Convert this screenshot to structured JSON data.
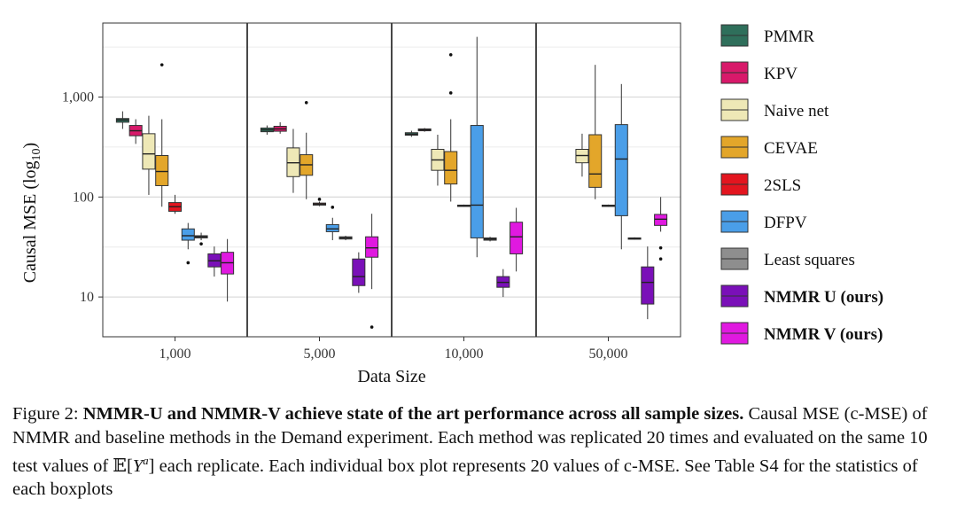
{
  "chart_data": {
    "type": "boxplot",
    "scale": "log10",
    "ylabel": "Causal MSE (log",
    "ylabel_sub": "10",
    "ylabel_close": ")",
    "xlabel": "Data Size",
    "ylim": [
      4,
      5500
    ],
    "yticks": [
      {
        "value": 10,
        "label": "10"
      },
      {
        "value": 100,
        "label": "100"
      },
      {
        "value": 1000,
        "label": "1,000"
      }
    ],
    "categories": [
      "1,000",
      "5,000",
      "10,000",
      "50,000"
    ],
    "methods": [
      {
        "name": "PMMR",
        "color": "#2f6f5b",
        "bold": false
      },
      {
        "name": "KPV",
        "color": "#d8196a",
        "bold": false
      },
      {
        "name": "Naive net",
        "color": "#eee8b6",
        "bold": false
      },
      {
        "name": "CEVAE",
        "color": "#e3a62a",
        "bold": false
      },
      {
        "name": "2SLS",
        "color": "#e3151f",
        "bold": false
      },
      {
        "name": "DFPV",
        "color": "#4a9ee8",
        "bold": false
      },
      {
        "name": "Least squares",
        "color": "#8e8e8e",
        "bold": false
      },
      {
        "name": "NMMR U (ours)",
        "color": "#7a10b8",
        "bold": true
      },
      {
        "name": "NMMR V (ours)",
        "color": "#e019e0",
        "bold": true
      }
    ],
    "boxes": [
      {
        "group": 0,
        "method": 0,
        "q1": 560,
        "median": 590,
        "q3": 610,
        "lo": 480,
        "hi": 720,
        "outliers": []
      },
      {
        "group": 0,
        "method": 1,
        "q1": 410,
        "median": 460,
        "q3": 520,
        "lo": 340,
        "hi": 600,
        "outliers": []
      },
      {
        "group": 0,
        "method": 2,
        "q1": 190,
        "median": 270,
        "q3": 430,
        "lo": 105,
        "hi": 650,
        "outliers": []
      },
      {
        "group": 0,
        "method": 3,
        "q1": 130,
        "median": 180,
        "q3": 260,
        "lo": 80,
        "hi": 600,
        "outliers": [
          2100
        ]
      },
      {
        "group": 0,
        "method": 4,
        "q1": 72,
        "median": 80,
        "q3": 88,
        "lo": 68,
        "hi": 105,
        "outliers": []
      },
      {
        "group": 0,
        "method": 5,
        "q1": 37,
        "median": 41,
        "q3": 48,
        "lo": 30,
        "hi": 55,
        "outliers": [
          22
        ]
      },
      {
        "group": 0,
        "method": 6,
        "q1": 39,
        "median": 40,
        "q3": 41,
        "lo": 37,
        "hi": 44,
        "outliers": [
          34
        ]
      },
      {
        "group": 0,
        "method": 7,
        "q1": 20,
        "median": 23,
        "q3": 27,
        "lo": 16,
        "hi": 32,
        "outliers": []
      },
      {
        "group": 0,
        "method": 8,
        "q1": 17,
        "median": 22,
        "q3": 28,
        "lo": 9,
        "hi": 38,
        "outliers": []
      },
      {
        "group": 1,
        "method": 0,
        "q1": 450,
        "median": 470,
        "q3": 490,
        "lo": 420,
        "hi": 520,
        "outliers": []
      },
      {
        "group": 1,
        "method": 1,
        "q1": 455,
        "median": 480,
        "q3": 510,
        "lo": 430,
        "hi": 560,
        "outliers": []
      },
      {
        "group": 1,
        "method": 2,
        "q1": 160,
        "median": 220,
        "q3": 310,
        "lo": 110,
        "hi": 480,
        "outliers": []
      },
      {
        "group": 1,
        "method": 3,
        "q1": 165,
        "median": 210,
        "q3": 265,
        "lo": 95,
        "hi": 440,
        "outliers": [
          880
        ]
      },
      {
        "group": 1,
        "method": 4,
        "q1": 83,
        "median": 85,
        "q3": 87,
        "lo": 81,
        "hi": 90,
        "outliers": [
          95
        ]
      },
      {
        "group": 1,
        "method": 5,
        "q1": 45,
        "median": 48,
        "q3": 53,
        "lo": 37,
        "hi": 62,
        "outliers": [
          79
        ]
      },
      {
        "group": 1,
        "method": 6,
        "q1": 38,
        "median": 39,
        "q3": 40,
        "lo": 37,
        "hi": 41,
        "outliers": []
      },
      {
        "group": 1,
        "method": 7,
        "q1": 13,
        "median": 16,
        "q3": 24,
        "lo": 11,
        "hi": 28,
        "outliers": []
      },
      {
        "group": 1,
        "method": 8,
        "q1": 25,
        "median": 31,
        "q3": 40,
        "lo": 12,
        "hi": 68,
        "outliers": [
          5
        ]
      },
      {
        "group": 2,
        "method": 0,
        "q1": 415,
        "median": 425,
        "q3": 440,
        "lo": 400,
        "hi": 460,
        "outliers": []
      },
      {
        "group": 2,
        "method": 1,
        "q1": 460,
        "median": 470,
        "q3": 480,
        "lo": 450,
        "hi": 490,
        "outliers": []
      },
      {
        "group": 2,
        "method": 2,
        "q1": 185,
        "median": 235,
        "q3": 300,
        "lo": 130,
        "hi": 420,
        "outliers": []
      },
      {
        "group": 2,
        "method": 3,
        "q1": 135,
        "median": 185,
        "q3": 285,
        "lo": 90,
        "hi": 600,
        "outliers": [
          1100,
          2650
        ]
      },
      {
        "group": 2,
        "method": 4,
        "q1": 81,
        "median": 82,
        "q3": 83,
        "lo": 80,
        "hi": 84,
        "outliers": []
      },
      {
        "group": 2,
        "method": 5,
        "q1": 39,
        "median": 83,
        "q3": 520,
        "lo": 25,
        "hi": 4000,
        "outliers": []
      },
      {
        "group": 2,
        "method": 6,
        "q1": 37,
        "median": 38,
        "q3": 39,
        "lo": 36,
        "hi": 40,
        "outliers": []
      },
      {
        "group": 2,
        "method": 7,
        "q1": 12.5,
        "median": 14,
        "q3": 16,
        "lo": 10,
        "hi": 19,
        "outliers": []
      },
      {
        "group": 2,
        "method": 8,
        "q1": 27,
        "median": 40,
        "q3": 56,
        "lo": 18,
        "hi": 78,
        "outliers": []
      },
      {
        "group": 3,
        "method": 2,
        "q1": 220,
        "median": 260,
        "q3": 300,
        "lo": 160,
        "hi": 430,
        "outliers": []
      },
      {
        "group": 3,
        "method": 3,
        "q1": 125,
        "median": 170,
        "q3": 420,
        "lo": 95,
        "hi": 2100,
        "outliers": []
      },
      {
        "group": 3,
        "method": 4,
        "q1": 81,
        "median": 82,
        "q3": 83,
        "lo": 80,
        "hi": 84,
        "outliers": []
      },
      {
        "group": 3,
        "method": 5,
        "q1": 65,
        "median": 240,
        "q3": 530,
        "lo": 30,
        "hi": 1350,
        "outliers": []
      },
      {
        "group": 3,
        "method": 6,
        "q1": 38,
        "median": 38.5,
        "q3": 39,
        "lo": 37.5,
        "hi": 39.5,
        "outliers": []
      },
      {
        "group": 3,
        "method": 7,
        "q1": 8.5,
        "median": 14,
        "q3": 20,
        "lo": 6,
        "hi": 32,
        "outliers": []
      },
      {
        "group": 3,
        "method": 8,
        "q1": 52,
        "median": 60,
        "q3": 67,
        "lo": 45,
        "hi": 100,
        "outliers": [
          24,
          31
        ]
      }
    ]
  },
  "caption": {
    "figure_label": "Figure 2:",
    "headline": "NMMR-U and NMMR-V achieve state of the art performance across all sample sizes",
    "headline_end": ".",
    "body_part1": "Causal MSE (c-MSE) of NMMR and baseline methods in the Demand experiment. Each method was replicated 20 times and evaluated on the same 10 test values of",
    "math_E": "𝔼",
    "math_open": "[",
    "math_Y": "Y",
    "math_sup": "a",
    "math_close": "]",
    "body_part2": "each replicate. Each individual box plot represents 20 values of c-MSE. See Table S4 for the statistics of each boxplots"
  }
}
